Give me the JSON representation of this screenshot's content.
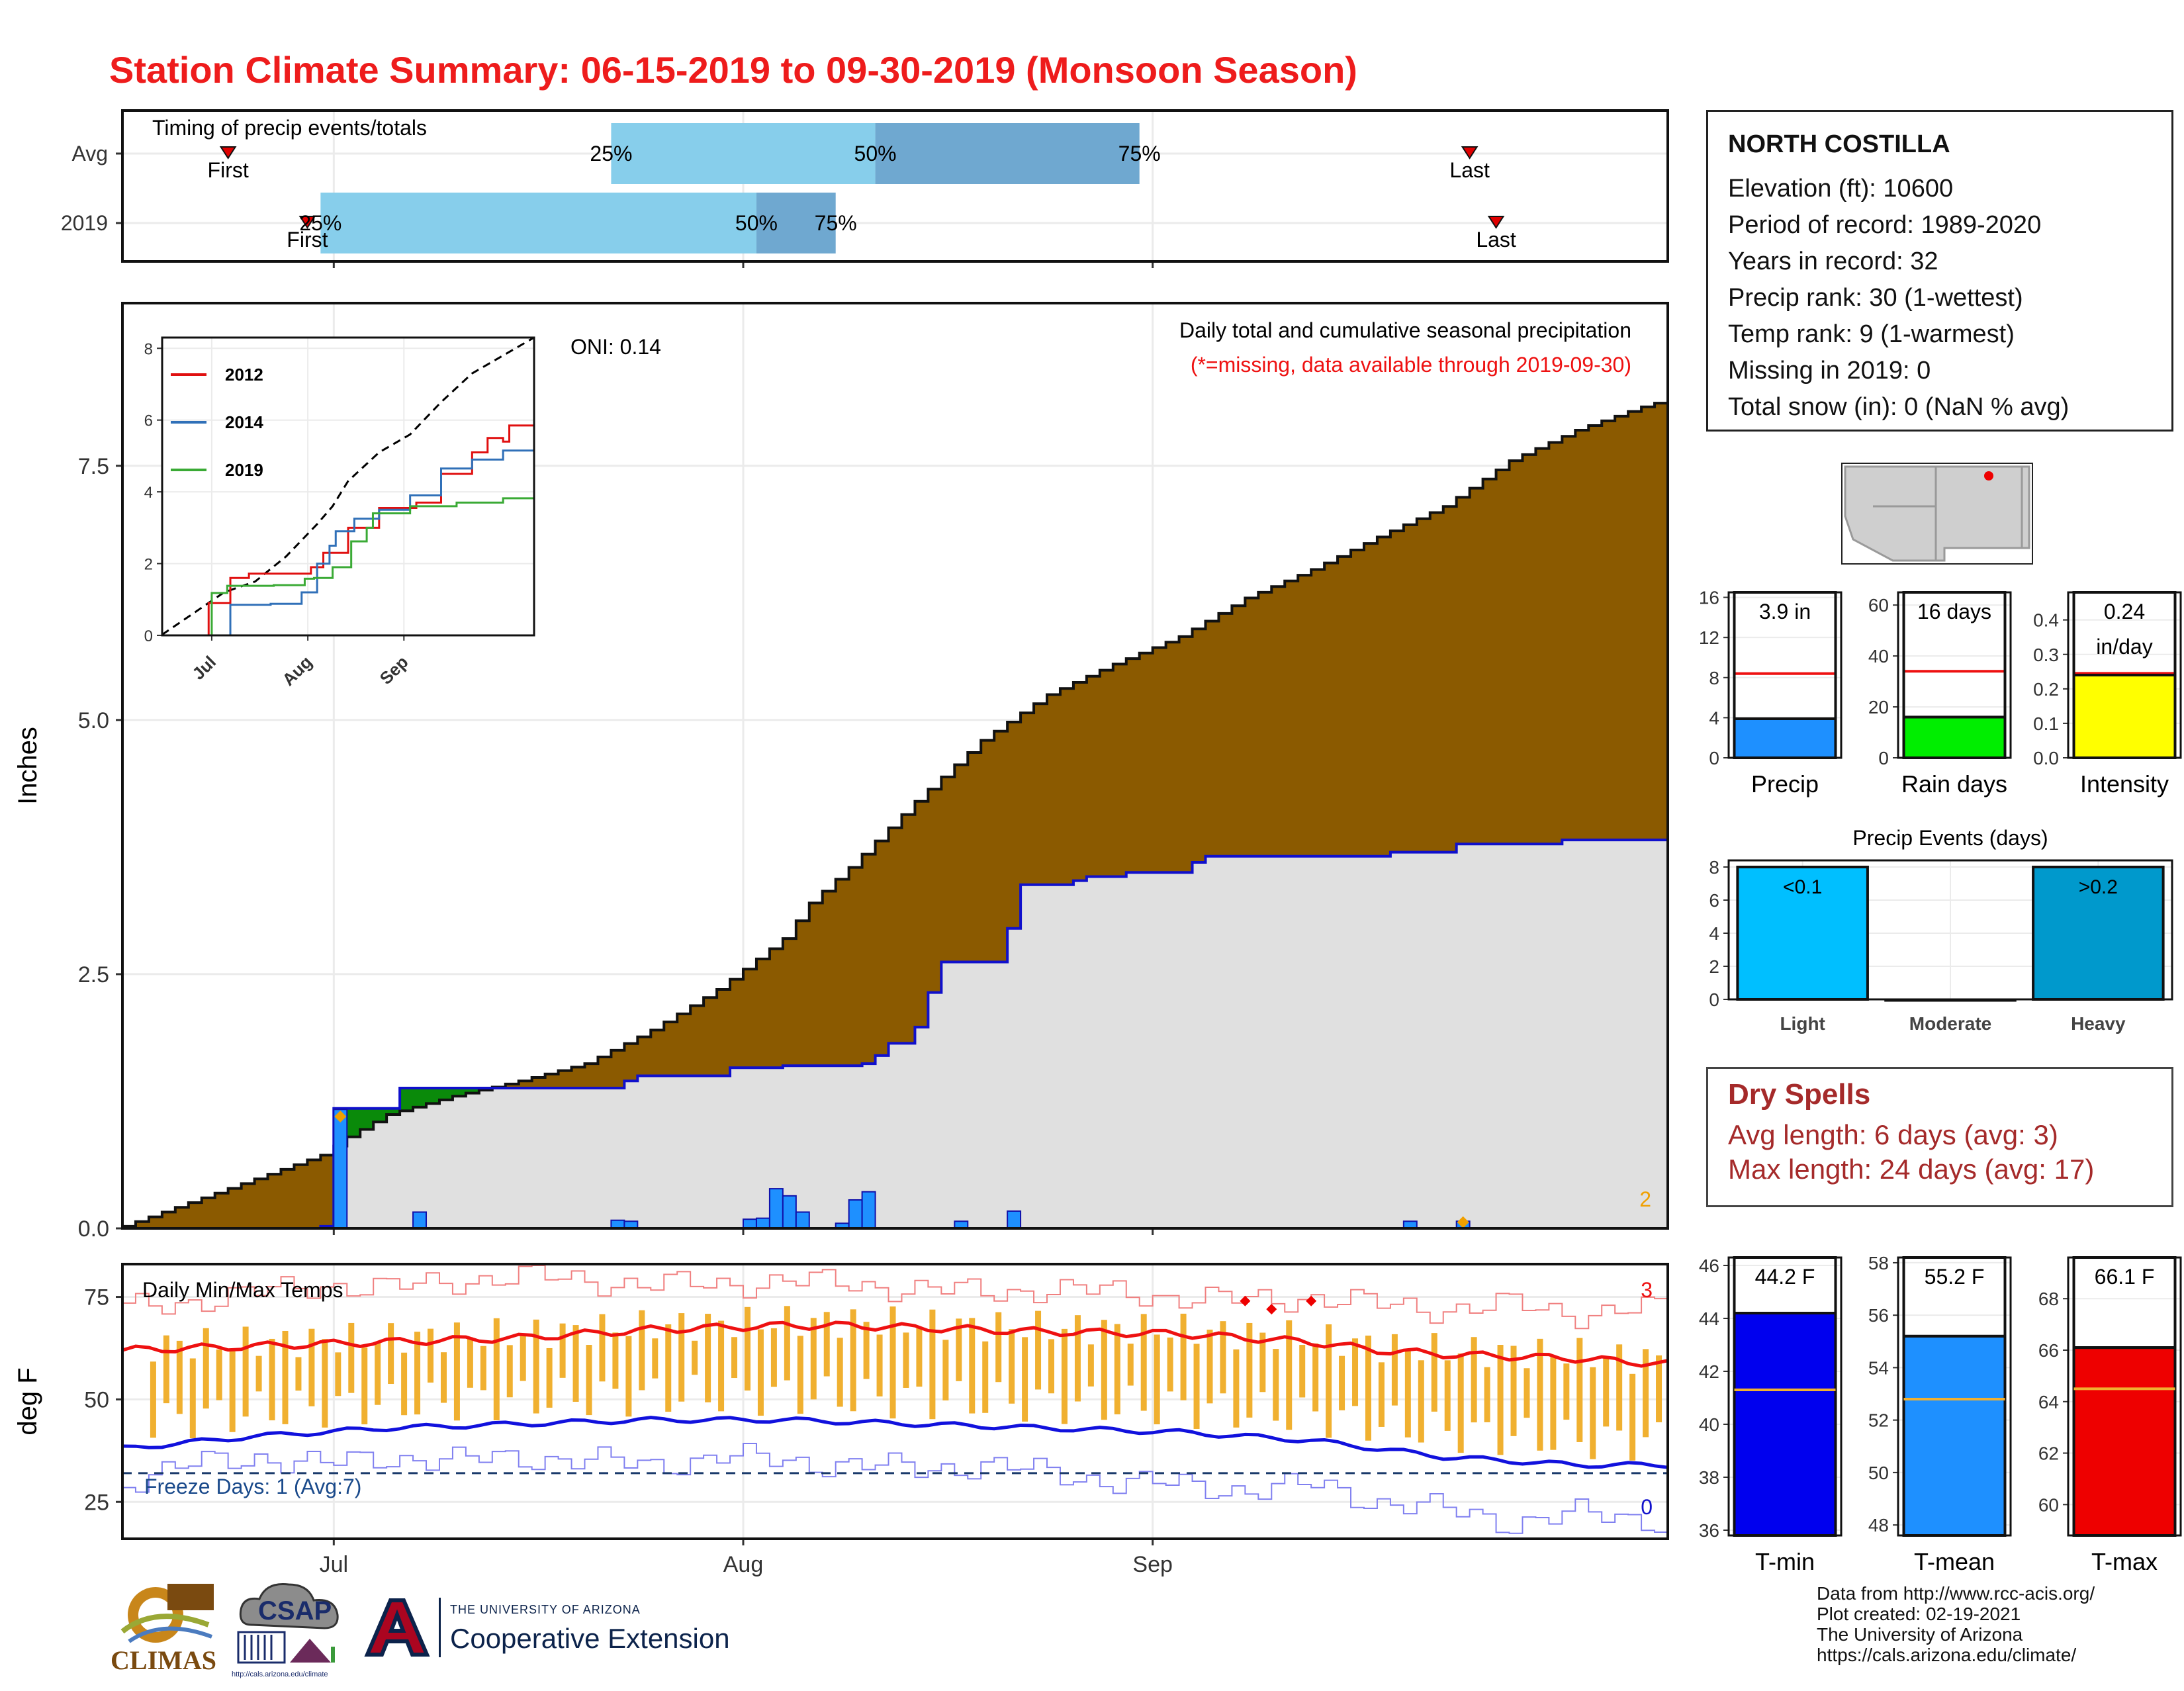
{
  "title": "Station Climate Summary: 06-15-2019 to 09-30-2019 (Monsoon Season)",
  "station": {
    "name": "NORTH COSTILLA",
    "lines": [
      "Elevation (ft): 10600",
      "Period of record: 1989-2020",
      "Years in record: 32",
      "Precip rank: 30 (1-wettest)",
      "Temp rank: 9 (1-warmest)",
      "Missing in 2019: 0",
      "Total snow (in): 0 (NaN % avg)"
    ]
  },
  "dry_spells": {
    "title": "Dry Spells",
    "avg_length": "Avg length: 6 days (avg: 3)",
    "max_length": "Max length: 24 days (avg: 17)"
  },
  "credits": [
    "Data from http://www.rcc-acis.org/",
    "Plot created: 02-19-2021",
    "The University of Arizona",
    "https://cals.arizona.edu/climate/"
  ],
  "logos": {
    "climas": "CLIMAS",
    "csap": "CSAP",
    "csap_url": "http://cals.arizona.edu/climate",
    "ua_small": "THE UNIVERSITY OF ARIZONA",
    "ua_big": "Cooperative Extension"
  },
  "colors": {
    "title": "#ee1c1c",
    "cum_avg": "#8b5a00",
    "above_avg": "#0a8a0a",
    "cum_2019_fill": "#e0e0e0",
    "cum_2019_line": "#1010cc",
    "daily_bar": "#1e90ff",
    "tmax": "#ee1111",
    "tmin": "#1111dd",
    "range_bar": "#f0b030"
  },
  "chart_data": [
    {
      "id": "timing",
      "type": "bar",
      "subtitle": "Timing of precip events/totals",
      "categories": [
        "Avg",
        "2019"
      ],
      "x_start": "2019-06-15",
      "x_end": "2019-09-30",
      "rows": [
        {
          "label": "Avg",
          "first": "2019-06-23",
          "p25": "2019-07-22",
          "p50": "2019-08-11",
          "p75": "2019-08-31",
          "last": "2019-09-25",
          "labels": {
            "first": "First",
            "p25": "25%",
            "p50": "50%",
            "p75": "75%",
            "last": "Last"
          }
        },
        {
          "label": "2019",
          "first": "2019-06-29",
          "p25": "2019-06-30",
          "p50": "2019-08-02",
          "p75": "2019-08-08",
          "last": "2019-09-27",
          "labels": {
            "first": "First",
            "p25": "25%",
            "p50": "50%",
            "p75": "75%",
            "last": "Last"
          }
        }
      ]
    },
    {
      "id": "precip",
      "type": "area",
      "ylabel": "Inches",
      "ylim": [
        0,
        9.1
      ],
      "yticks": [
        0.0,
        2.5,
        5.0,
        7.5
      ],
      "ytick_labels": [
        "0.0",
        "2.5",
        "5.0",
        "7.5"
      ],
      "xticks": [
        "2019-07-01",
        "2019-08-01",
        "2019-09-01"
      ],
      "xtick_labels": [
        "Jul",
        "Aug",
        "Sep"
      ],
      "annotation_title": "Daily total and cumulative seasonal precipitation",
      "annotation_missing": "(*=missing, data available through 2019-09-30)",
      "oni": "ONI: 0.14",
      "corner_count": "2",
      "avg_cumulative": [
        [
          0,
          0.02
        ],
        [
          15,
          0.72
        ],
        [
          17,
          0.9
        ],
        [
          20,
          1.12
        ],
        [
          25,
          1.3
        ],
        [
          30,
          1.45
        ],
        [
          35,
          1.62
        ],
        [
          40,
          1.95
        ],
        [
          45,
          2.35
        ],
        [
          50,
          2.85
        ],
        [
          52,
          3.2
        ],
        [
          55,
          3.55
        ],
        [
          60,
          4.2
        ],
        [
          65,
          4.8
        ],
        [
          70,
          5.25
        ],
        [
          75,
          5.55
        ],
        [
          80,
          5.82
        ],
        [
          85,
          6.2
        ],
        [
          90,
          6.48
        ],
        [
          95,
          6.8
        ],
        [
          100,
          7.1
        ],
        [
          105,
          7.55
        ],
        [
          110,
          7.85
        ],
        [
          115,
          8.08
        ],
        [
          120,
          8.26
        ]
      ],
      "cumulative_2019": [
        [
          0,
          0
        ],
        [
          15,
          0.02
        ],
        [
          16,
          1.18
        ],
        [
          20,
          1.18
        ],
        [
          21,
          1.38
        ],
        [
          26,
          1.38
        ],
        [
          36,
          1.38
        ],
        [
          38,
          1.45
        ],
        [
          39,
          1.5
        ],
        [
          46,
          1.58
        ],
        [
          47,
          1.58
        ],
        [
          48,
          1.58
        ],
        [
          49,
          1.58
        ],
        [
          50,
          1.6
        ],
        [
          56,
          1.62
        ],
        [
          57,
          1.7
        ],
        [
          58,
          1.82
        ],
        [
          60,
          1.98
        ],
        [
          61,
          2.32
        ],
        [
          62,
          2.62
        ],
        [
          66,
          2.62
        ],
        [
          67,
          2.95
        ],
        [
          68,
          3.38
        ],
        [
          72,
          3.42
        ],
        [
          73,
          3.46
        ],
        [
          76,
          3.5
        ],
        [
          81,
          3.6
        ],
        [
          82,
          3.66
        ],
        [
          96,
          3.7
        ],
        [
          101,
          3.78
        ],
        [
          109,
          3.82
        ],
        [
          117,
          3.9
        ]
      ],
      "daily_2019": [
        [
          16,
          1.17
        ],
        [
          22,
          0.16
        ],
        [
          37,
          0.08
        ],
        [
          38,
          0.07
        ],
        [
          47,
          0.09
        ],
        [
          48,
          0.1
        ],
        [
          49,
          0.39
        ],
        [
          50,
          0.32
        ],
        [
          51,
          0.16
        ],
        [
          54,
          0.05
        ],
        [
          55,
          0.28
        ],
        [
          56,
          0.36
        ],
        [
          63,
          0.07
        ],
        [
          67,
          0.17
        ],
        [
          97,
          0.07
        ],
        [
          101,
          0.07
        ]
      ],
      "missing_marker_days": [
        16,
        101
      ],
      "inset": {
        "type": "line",
        "ylim": [
          0,
          8.3
        ],
        "yticks": [
          0,
          2,
          4,
          6,
          8
        ],
        "ytick_labels": [
          "0",
          "2",
          "4",
          "6",
          "8"
        ],
        "xticks": [
          "2019-07-01",
          "2019-08-01",
          "2019-09-01"
        ],
        "xtick_labels": [
          "Jul",
          "Aug",
          "Sep"
        ],
        "series": [
          {
            "name": "",
            "style": "dashed",
            "color": "#000000",
            "points": [
              [
                0,
                0.02
              ],
              [
                20,
                1.2
              ],
              [
                30,
                1.5
              ],
              [
                40,
                2.2
              ],
              [
                50,
                3.1
              ],
              [
                55,
                3.6
              ],
              [
                60,
                4.3
              ],
              [
                70,
                5.1
              ],
              [
                80,
                5.6
              ],
              [
                90,
                6.5
              ],
              [
                100,
                7.3
              ],
              [
                110,
                7.8
              ],
              [
                120,
                8.3
              ]
            ]
          },
          {
            "name": "2012",
            "color": "#e01010",
            "points": [
              [
                0,
                0
              ],
              [
                10,
                0
              ],
              [
                15,
                0.9
              ],
              [
                22,
                1.6
              ],
              [
                28,
                1.72
              ],
              [
                42,
                1.72
              ],
              [
                48,
                1.9
              ],
              [
                52,
                2.3
              ],
              [
                60,
                3.0
              ],
              [
                70,
                3.55
              ],
              [
                82,
                3.7
              ],
              [
                90,
                4.5
              ],
              [
                100,
                5.1
              ],
              [
                105,
                5.5
              ],
              [
                110,
                5.4
              ],
              [
                112,
                5.85
              ],
              [
                120,
                5.88
              ]
            ]
          },
          {
            "name": "2014",
            "color": "#3070b8",
            "points": [
              [
                0,
                0
              ],
              [
                18,
                0
              ],
              [
                22,
                0.85
              ],
              [
                35,
                0.88
              ],
              [
                45,
                1.2
              ],
              [
                50,
                2.0
              ],
              [
                54,
                2.5
              ],
              [
                56,
                2.9
              ],
              [
                62,
                3.25
              ],
              [
                70,
                3.5
              ],
              [
                80,
                3.9
              ],
              [
                90,
                4.65
              ],
              [
                100,
                4.9
              ],
              [
                110,
                5.15
              ],
              [
                120,
                5.35
              ]
            ]
          },
          {
            "name": "2019",
            "color": "#3aaa35",
            "points": [
              [
                0,
                0
              ],
              [
                14,
                0
              ],
              [
                16,
                1.18
              ],
              [
                21,
                1.38
              ],
              [
                36,
                1.4
              ],
              [
                46,
                1.58
              ],
              [
                49,
                1.6
              ],
              [
                55,
                1.9
              ],
              [
                61,
                2.62
              ],
              [
                66,
                3.0
              ],
              [
                68,
                3.4
              ],
              [
                80,
                3.6
              ],
              [
                95,
                3.7
              ],
              [
                110,
                3.82
              ],
              [
                120,
                3.92
              ]
            ]
          }
        ]
      }
    },
    {
      "id": "temps",
      "type": "line",
      "ylabel": "deg F",
      "ylim": [
        16,
        83
      ],
      "yticks": [
        25,
        50,
        75
      ],
      "ytick_labels": [
        "25",
        "50",
        "75"
      ],
      "xticks": [
        "2019-07-01",
        "2019-08-01",
        "2019-09-01"
      ],
      "xtick_labels": [
        "Jul",
        "Aug",
        "Sep"
      ],
      "label": "Daily Min/Max Temps",
      "freeze_label": "Freeze Days: 1 (Avg:7)",
      "freeze_line": 32,
      "count_hot": "3",
      "count_cold": "0",
      "avg_tmax": [
        [
          0,
          62
        ],
        [
          10,
          63
        ],
        [
          20,
          64
        ],
        [
          30,
          65
        ],
        [
          40,
          67
        ],
        [
          50,
          68
        ],
        [
          55,
          68
        ],
        [
          60,
          67.5
        ],
        [
          70,
          66.5
        ],
        [
          80,
          66
        ],
        [
          90,
          64
        ],
        [
          95,
          62
        ],
        [
          100,
          61
        ],
        [
          110,
          60
        ],
        [
          115,
          59
        ],
        [
          120,
          58
        ]
      ],
      "avg_tmin": [
        [
          0,
          38
        ],
        [
          10,
          41
        ],
        [
          20,
          43
        ],
        [
          30,
          44
        ],
        [
          40,
          45
        ],
        [
          50,
          45
        ],
        [
          60,
          44
        ],
        [
          70,
          43
        ],
        [
          80,
          42
        ],
        [
          85,
          41
        ],
        [
          90,
          40
        ],
        [
          95,
          38
        ],
        [
          100,
          36
        ],
        [
          105,
          35
        ],
        [
          110,
          34
        ],
        [
          115,
          34
        ],
        [
          120,
          34
        ]
      ],
      "record_high": [
        [
          0,
          72
        ],
        [
          5,
          74
        ],
        [
          10,
          76
        ],
        [
          15,
          78
        ],
        [
          20,
          77
        ],
        [
          25,
          79
        ],
        [
          30,
          80
        ],
        [
          35,
          79
        ],
        [
          40,
          78
        ],
        [
          45,
          78
        ],
        [
          50,
          79
        ],
        [
          55,
          78
        ],
        [
          60,
          77
        ],
        [
          65,
          76
        ],
        [
          70,
          77
        ],
        [
          75,
          76
        ],
        [
          80,
          75
        ],
        [
          85,
          74
        ],
        [
          90,
          75
        ],
        [
          95,
          73
        ],
        [
          100,
          72
        ],
        [
          105,
          73
        ],
        [
          110,
          71
        ],
        [
          115,
          72
        ],
        [
          120,
          71
        ]
      ],
      "record_low": [
        [
          0,
          30
        ],
        [
          5,
          34
        ],
        [
          10,
          36
        ],
        [
          15,
          34
        ],
        [
          20,
          36
        ],
        [
          25,
          35
        ],
        [
          30,
          36
        ],
        [
          35,
          35
        ],
        [
          40,
          34
        ],
        [
          45,
          36
        ],
        [
          50,
          35
        ],
        [
          55,
          34
        ],
        [
          60,
          33
        ],
        [
          65,
          34
        ],
        [
          70,
          32
        ],
        [
          75,
          30
        ],
        [
          80,
          29
        ],
        [
          85,
          28
        ],
        [
          90,
          29
        ],
        [
          95,
          25
        ],
        [
          100,
          23
        ],
        [
          105,
          20
        ],
        [
          110,
          22
        ],
        [
          115,
          21
        ],
        [
          120,
          18
        ]
      ],
      "hot_markers": [
        [
          85,
          74
        ],
        [
          87,
          72
        ],
        [
          90,
          74
        ]
      ],
      "freeze_marker_day": 14
    },
    {
      "id": "summary-precip",
      "type": "bar",
      "categories": [
        "Precip"
      ],
      "values": [
        3.9
      ],
      "avg": 8.4,
      "ylim": [
        0,
        16.5
      ],
      "yticks": [
        0,
        4,
        8,
        12,
        16
      ],
      "value_label": "3.9 in"
    },
    {
      "id": "summary-raindays",
      "type": "bar",
      "categories": [
        "Rain days"
      ],
      "values": [
        16
      ],
      "avg": 34,
      "ylim": [
        0,
        65
      ],
      "yticks": [
        0,
        20,
        40,
        60
      ],
      "value_label": "16 days"
    },
    {
      "id": "summary-intensity",
      "type": "bar",
      "categories": [
        "Intensity"
      ],
      "values": [
        0.24
      ],
      "avg": 0.245,
      "ylim": [
        0,
        0.48
      ],
      "yticks": [
        0.0,
        0.1,
        0.2,
        0.3,
        0.4
      ],
      "ytick_labels": [
        "0.0",
        "0.1",
        "0.2",
        "0.3",
        "0.4"
      ],
      "value_label": "0.24",
      "unit_label": "in/day"
    },
    {
      "id": "events",
      "type": "bar",
      "title": "Precip Events (days)",
      "categories": [
        "Light",
        "Moderate",
        "Heavy"
      ],
      "values": [
        8,
        0,
        8
      ],
      "bar_labels": [
        "<0.1",
        "",
        ">0.2"
      ],
      "ylim": [
        0,
        8.4
      ],
      "yticks": [
        0,
        2,
        4,
        6,
        8
      ]
    },
    {
      "id": "temp-tmin",
      "type": "bar",
      "categories": [
        "T-min"
      ],
      "values": [
        44.2
      ],
      "avg": 41.3,
      "ylim": [
        35.8,
        46.3
      ],
      "yticks": [
        36,
        38,
        40,
        42,
        44,
        46
      ],
      "value_label": "44.2 F"
    },
    {
      "id": "temp-tmean",
      "type": "bar",
      "categories": [
        "T-mean"
      ],
      "values": [
        55.2
      ],
      "avg": 52.8,
      "ylim": [
        47.6,
        58.2
      ],
      "yticks": [
        48,
        50,
        52,
        54,
        56,
        58
      ],
      "value_label": "55.2 F"
    },
    {
      "id": "temp-tmax",
      "type": "bar",
      "categories": [
        "T-max"
      ],
      "values": [
        66.1
      ],
      "avg": 64.5,
      "ylim": [
        58.8,
        69.6
      ],
      "yticks": [
        60,
        62,
        64,
        66,
        68
      ],
      "value_label": "66.1 F"
    }
  ]
}
